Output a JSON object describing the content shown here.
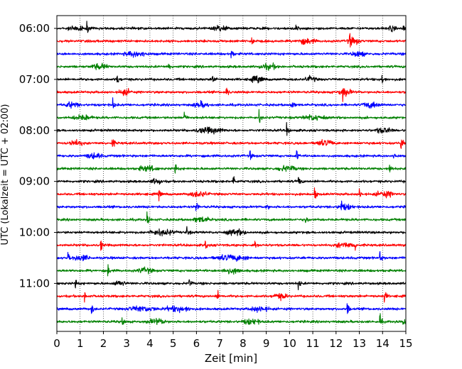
{
  "chart_data": {
    "type": "line",
    "chart_kind": "helicorder",
    "xlabel": "Zeit  [min]",
    "ylabel": "UTC (Lokalzeit = UTC + 02:00)",
    "xlim": [
      0,
      15
    ],
    "x_ticks": [
      "0",
      "1",
      "2",
      "3",
      "4",
      "5",
      "6",
      "7",
      "8",
      "9",
      "10",
      "11",
      "12",
      "13",
      "14",
      "15"
    ],
    "y_tick_labels": [
      "06:00",
      "07:00",
      "08:00",
      "09:00",
      "10:00",
      "11:00"
    ],
    "traces_per_hour": 4,
    "trace_minutes": 15,
    "start_time": "06:00",
    "grid": "vertical dotted lines at each minute",
    "trace_colors": [
      "#000000",
      "#ff0000",
      "#0000ff",
      "#008000"
    ],
    "series": [
      {
        "start": "06:00",
        "color": "#000000",
        "events": [
          1.3,
          10.3,
          14.9
        ],
        "bursts": [
          [
            0.4,
            1.2
          ],
          [
            6.6,
            7.4
          ],
          [
            14.2,
            14.6
          ]
        ]
      },
      {
        "start": "06:15",
        "color": "#ff0000",
        "events": [
          8.4,
          12.6
        ],
        "bursts": [
          [
            10.2,
            11.2
          ],
          [
            12.4,
            13.1
          ]
        ]
      },
      {
        "start": "06:30",
        "color": "#0000ff",
        "events": [
          7.5
        ],
        "bursts": [
          [
            2.8,
            4.0
          ],
          [
            12.6,
            13.3
          ]
        ]
      },
      {
        "start": "06:45",
        "color": "#008000",
        "events": [
          4.8
        ],
        "bursts": [
          [
            1.4,
            2.3
          ],
          [
            8.6,
            9.6
          ]
        ]
      },
      {
        "start": "07:00",
        "color": "#000000",
        "events": [
          2.6,
          6.7,
          14.0
        ],
        "bursts": [
          [
            8.2,
            9.0
          ],
          [
            10.6,
            11.2
          ]
        ]
      },
      {
        "start": "07:15",
        "color": "#ff0000",
        "events": [
          7.3,
          12.3
        ],
        "bursts": [
          [
            12.0,
            12.8
          ],
          [
            2.6,
            3.3
          ]
        ]
      },
      {
        "start": "07:30",
        "color": "#0000ff",
        "events": [
          2.4,
          10.1
        ],
        "bursts": [
          [
            0.3,
            1.0
          ],
          [
            5.8,
            6.6
          ],
          [
            13.0,
            14.0
          ]
        ]
      },
      {
        "start": "07:45",
        "color": "#008000",
        "events": [
          5.5,
          8.7
        ],
        "bursts": [
          [
            0.6,
            1.6
          ],
          [
            10.5,
            11.6
          ]
        ]
      },
      {
        "start": "08:00",
        "color": "#000000",
        "events": [
          9.9
        ],
        "bursts": [
          [
            5.8,
            7.3
          ],
          [
            13.6,
            14.5
          ]
        ]
      },
      {
        "start": "08:15",
        "color": "#ff0000",
        "events": [
          2.4,
          14.8
        ],
        "bursts": [
          [
            11.0,
            12.0
          ],
          [
            0.4,
            1.2
          ]
        ]
      },
      {
        "start": "08:30",
        "color": "#0000ff",
        "events": [
          8.3,
          10.3,
          14.5
        ],
        "bursts": [
          [
            1.2,
            2.0
          ]
        ]
      },
      {
        "start": "08:45",
        "color": "#008000",
        "events": [
          5.1,
          14.3
        ],
        "bursts": [
          [
            3.4,
            4.4
          ],
          [
            9.4,
            10.4
          ]
        ]
      },
      {
        "start": "09:00",
        "color": "#000000",
        "events": [
          7.6,
          10.4
        ],
        "bursts": [
          [
            4.0,
            4.6
          ]
        ]
      },
      {
        "start": "09:15",
        "color": "#ff0000",
        "events": [
          4.4,
          11.1,
          13.0
        ],
        "bursts": [
          [
            5.6,
            6.6
          ],
          [
            13.6,
            14.6
          ]
        ]
      },
      {
        "start": "09:30",
        "color": "#0000ff",
        "events": [
          6.0,
          9.0,
          12.2
        ],
        "bursts": [
          [
            12.0,
            12.8
          ]
        ]
      },
      {
        "start": "09:45",
        "color": "#008000",
        "events": [
          3.9,
          10.7
        ],
        "bursts": [
          [
            5.8,
            6.7
          ]
        ]
      },
      {
        "start": "10:00",
        "color": "#000000",
        "events": [
          5.6
        ],
        "bursts": [
          [
            3.8,
            5.2
          ],
          [
            7.2,
            8.2
          ]
        ]
      },
      {
        "start": "10:15",
        "color": "#ff0000",
        "events": [
          1.9,
          6.4,
          8.5,
          12.8
        ],
        "bursts": [
          [
            11.9,
            12.8
          ]
        ]
      },
      {
        "start": "10:30",
        "color": "#0000ff",
        "events": [
          0.5,
          13.9
        ],
        "bursts": [
          [
            0.6,
            1.5
          ],
          [
            6.6,
            8.4
          ]
        ]
      },
      {
        "start": "10:45",
        "color": "#008000",
        "events": [
          2.2
        ],
        "bursts": [
          [
            7.0,
            8.0
          ],
          [
            3.4,
            4.2
          ]
        ]
      },
      {
        "start": "11:00",
        "color": "#000000",
        "events": [
          0.8,
          5.7,
          10.4
        ],
        "bursts": [
          [
            2.4,
            3.0
          ]
        ]
      },
      {
        "start": "11:15",
        "color": "#ff0000",
        "events": [
          1.2,
          6.9,
          14.1
        ],
        "bursts": [
          [
            9.2,
            10.0
          ]
        ]
      },
      {
        "start": "11:30",
        "color": "#0000ff",
        "events": [
          1.5,
          12.5
        ],
        "bursts": [
          [
            2.9,
            4.4
          ],
          [
            4.5,
            5.9
          ],
          [
            8.2,
            9.2
          ]
        ]
      },
      {
        "start": "11:45",
        "color": "#008000",
        "events": [
          2.8,
          13.9,
          14.9
        ],
        "bursts": [
          [
            3.8,
            4.8
          ],
          [
            7.9,
            8.8
          ]
        ]
      }
    ]
  }
}
